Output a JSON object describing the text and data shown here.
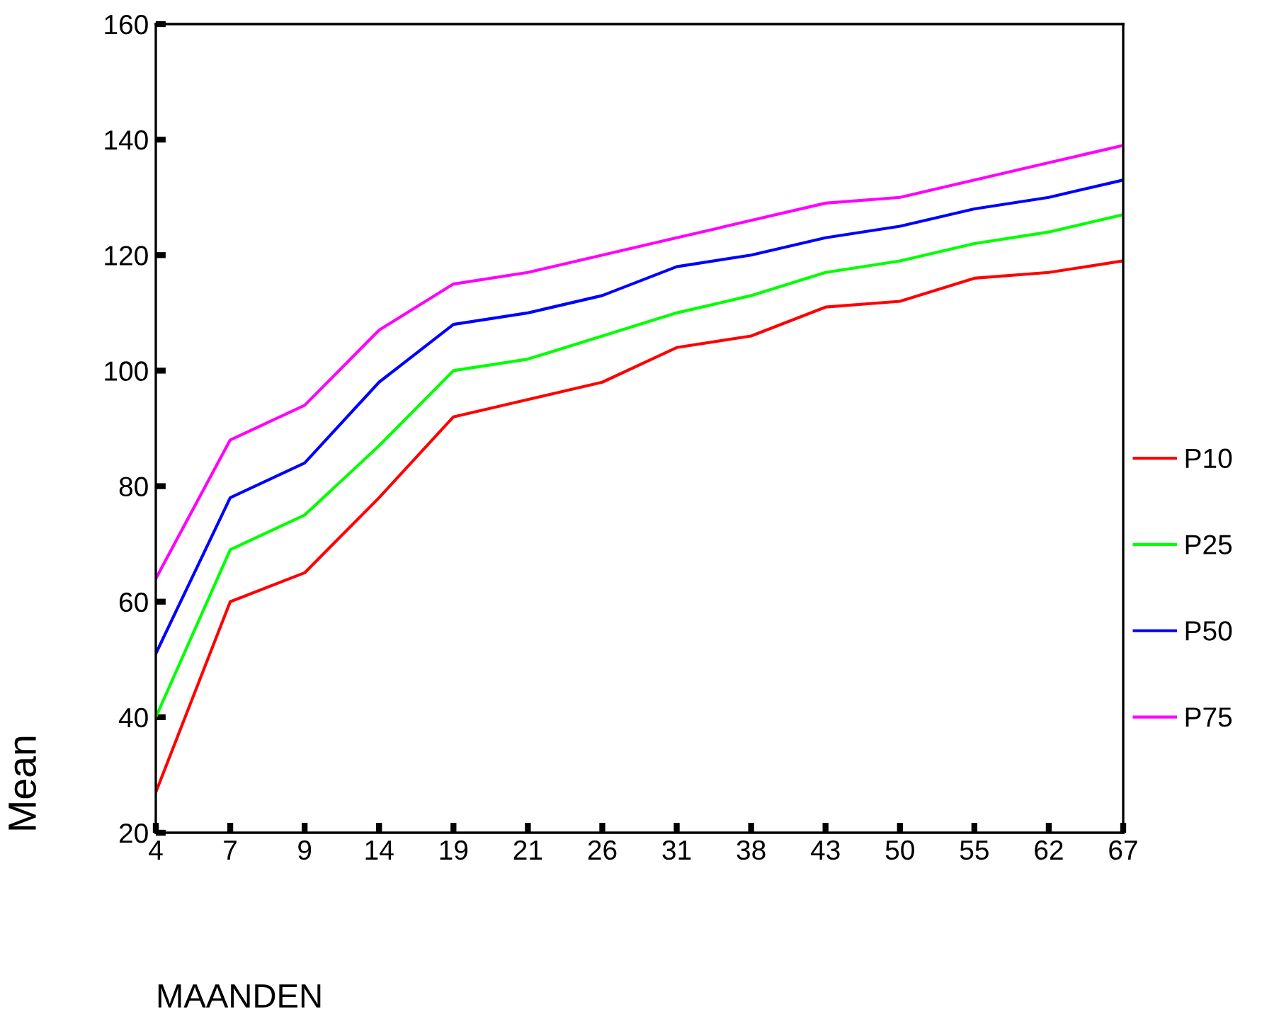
{
  "chart_data": {
    "type": "line",
    "xlabel": "MAANDEN",
    "ylabel": "Mean",
    "categories": [
      "4",
      "7",
      "9",
      "14",
      "19",
      "21",
      "26",
      "31",
      "38",
      "43",
      "50",
      "55",
      "62",
      "67"
    ],
    "series": [
      {
        "name": "P10",
        "color": "#ff0000",
        "values": [
          27,
          60,
          65,
          78,
          92,
          95,
          98,
          104,
          106,
          111,
          112,
          116,
          117,
          119
        ]
      },
      {
        "name": "P25",
        "color": "#00ff00",
        "values": [
          40,
          69,
          75,
          87,
          100,
          102,
          106,
          110,
          113,
          117,
          119,
          122,
          124,
          127
        ]
      },
      {
        "name": "P50",
        "color": "#0000ff",
        "values": [
          51,
          78,
          84,
          98,
          108,
          110,
          113,
          118,
          120,
          123,
          125,
          128,
          130,
          133
        ]
      },
      {
        "name": "P75",
        "color": "#ff00ff",
        "values": [
          64,
          88,
          94,
          107,
          115,
          117,
          120,
          123,
          126,
          129,
          130,
          133,
          136,
          139
        ]
      }
    ],
    "ylim": [
      20,
      160
    ],
    "yticks": [
      20,
      40,
      60,
      80,
      100,
      120,
      140,
      160
    ],
    "grid": false,
    "legend": "right",
    "marker": "none",
    "line_style": "solid"
  }
}
